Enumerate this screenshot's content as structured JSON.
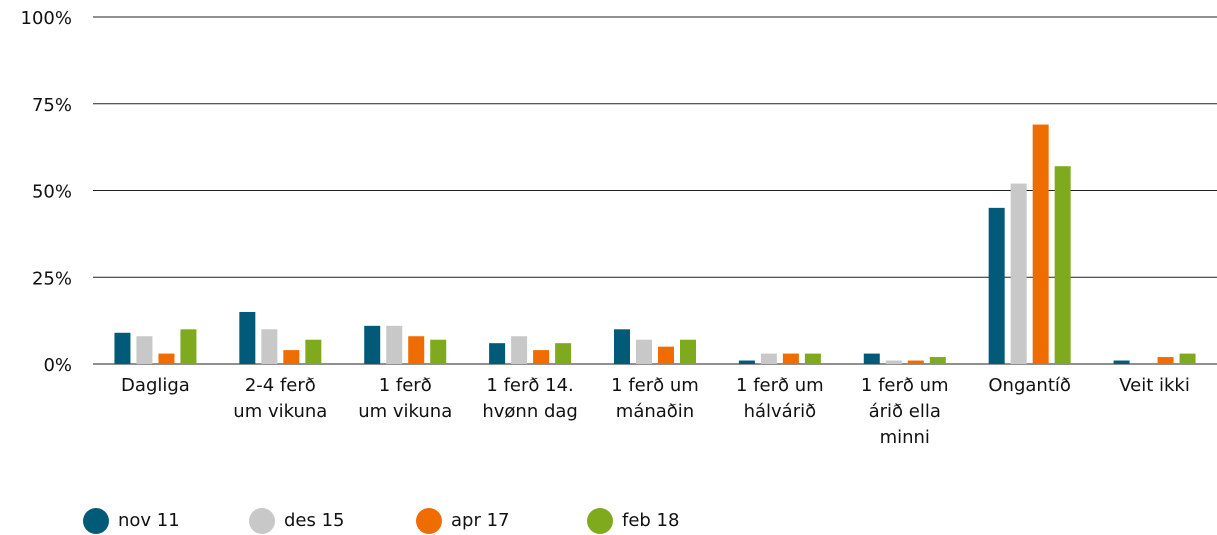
{
  "chart_data": {
    "type": "bar",
    "categories": [
      "Dagliga",
      "2-4 ferð\num vikuna",
      "1 ferð\num vikuna",
      "1 ferð 14.\nhvønn dag",
      "1 ferð um\nmánaðin",
      "1 ferð um\nhálvárið",
      "1 ferð um\nárið ella\nminni",
      "Ongantíð",
      "Veit ikki"
    ],
    "series": [
      {
        "name": "nov 11",
        "color": "#005a78",
        "values": [
          9,
          15,
          11,
          6,
          10,
          1,
          3,
          45,
          1
        ]
      },
      {
        "name": "des 15",
        "color": "#c8c8c8",
        "values": [
          8,
          10,
          11,
          8,
          7,
          3,
          1,
          52,
          0
        ]
      },
      {
        "name": "apr 17",
        "color": "#ef6c00",
        "values": [
          3,
          4,
          8,
          4,
          5,
          3,
          1,
          69,
          2
        ]
      },
      {
        "name": "feb 18",
        "color": "#7faa1e",
        "values": [
          10,
          7,
          7,
          6,
          7,
          3,
          2,
          57,
          3
        ]
      }
    ],
    "ylim": [
      0,
      100
    ],
    "yticks": [
      {
        "value": 0,
        "label": "0%"
      },
      {
        "value": 25,
        "label": "25%"
      },
      {
        "value": 50,
        "label": "50%"
      },
      {
        "value": 75,
        "label": "75%"
      },
      {
        "value": 100,
        "label": "100%"
      }
    ],
    "grid": true,
    "legend": "bottom"
  }
}
